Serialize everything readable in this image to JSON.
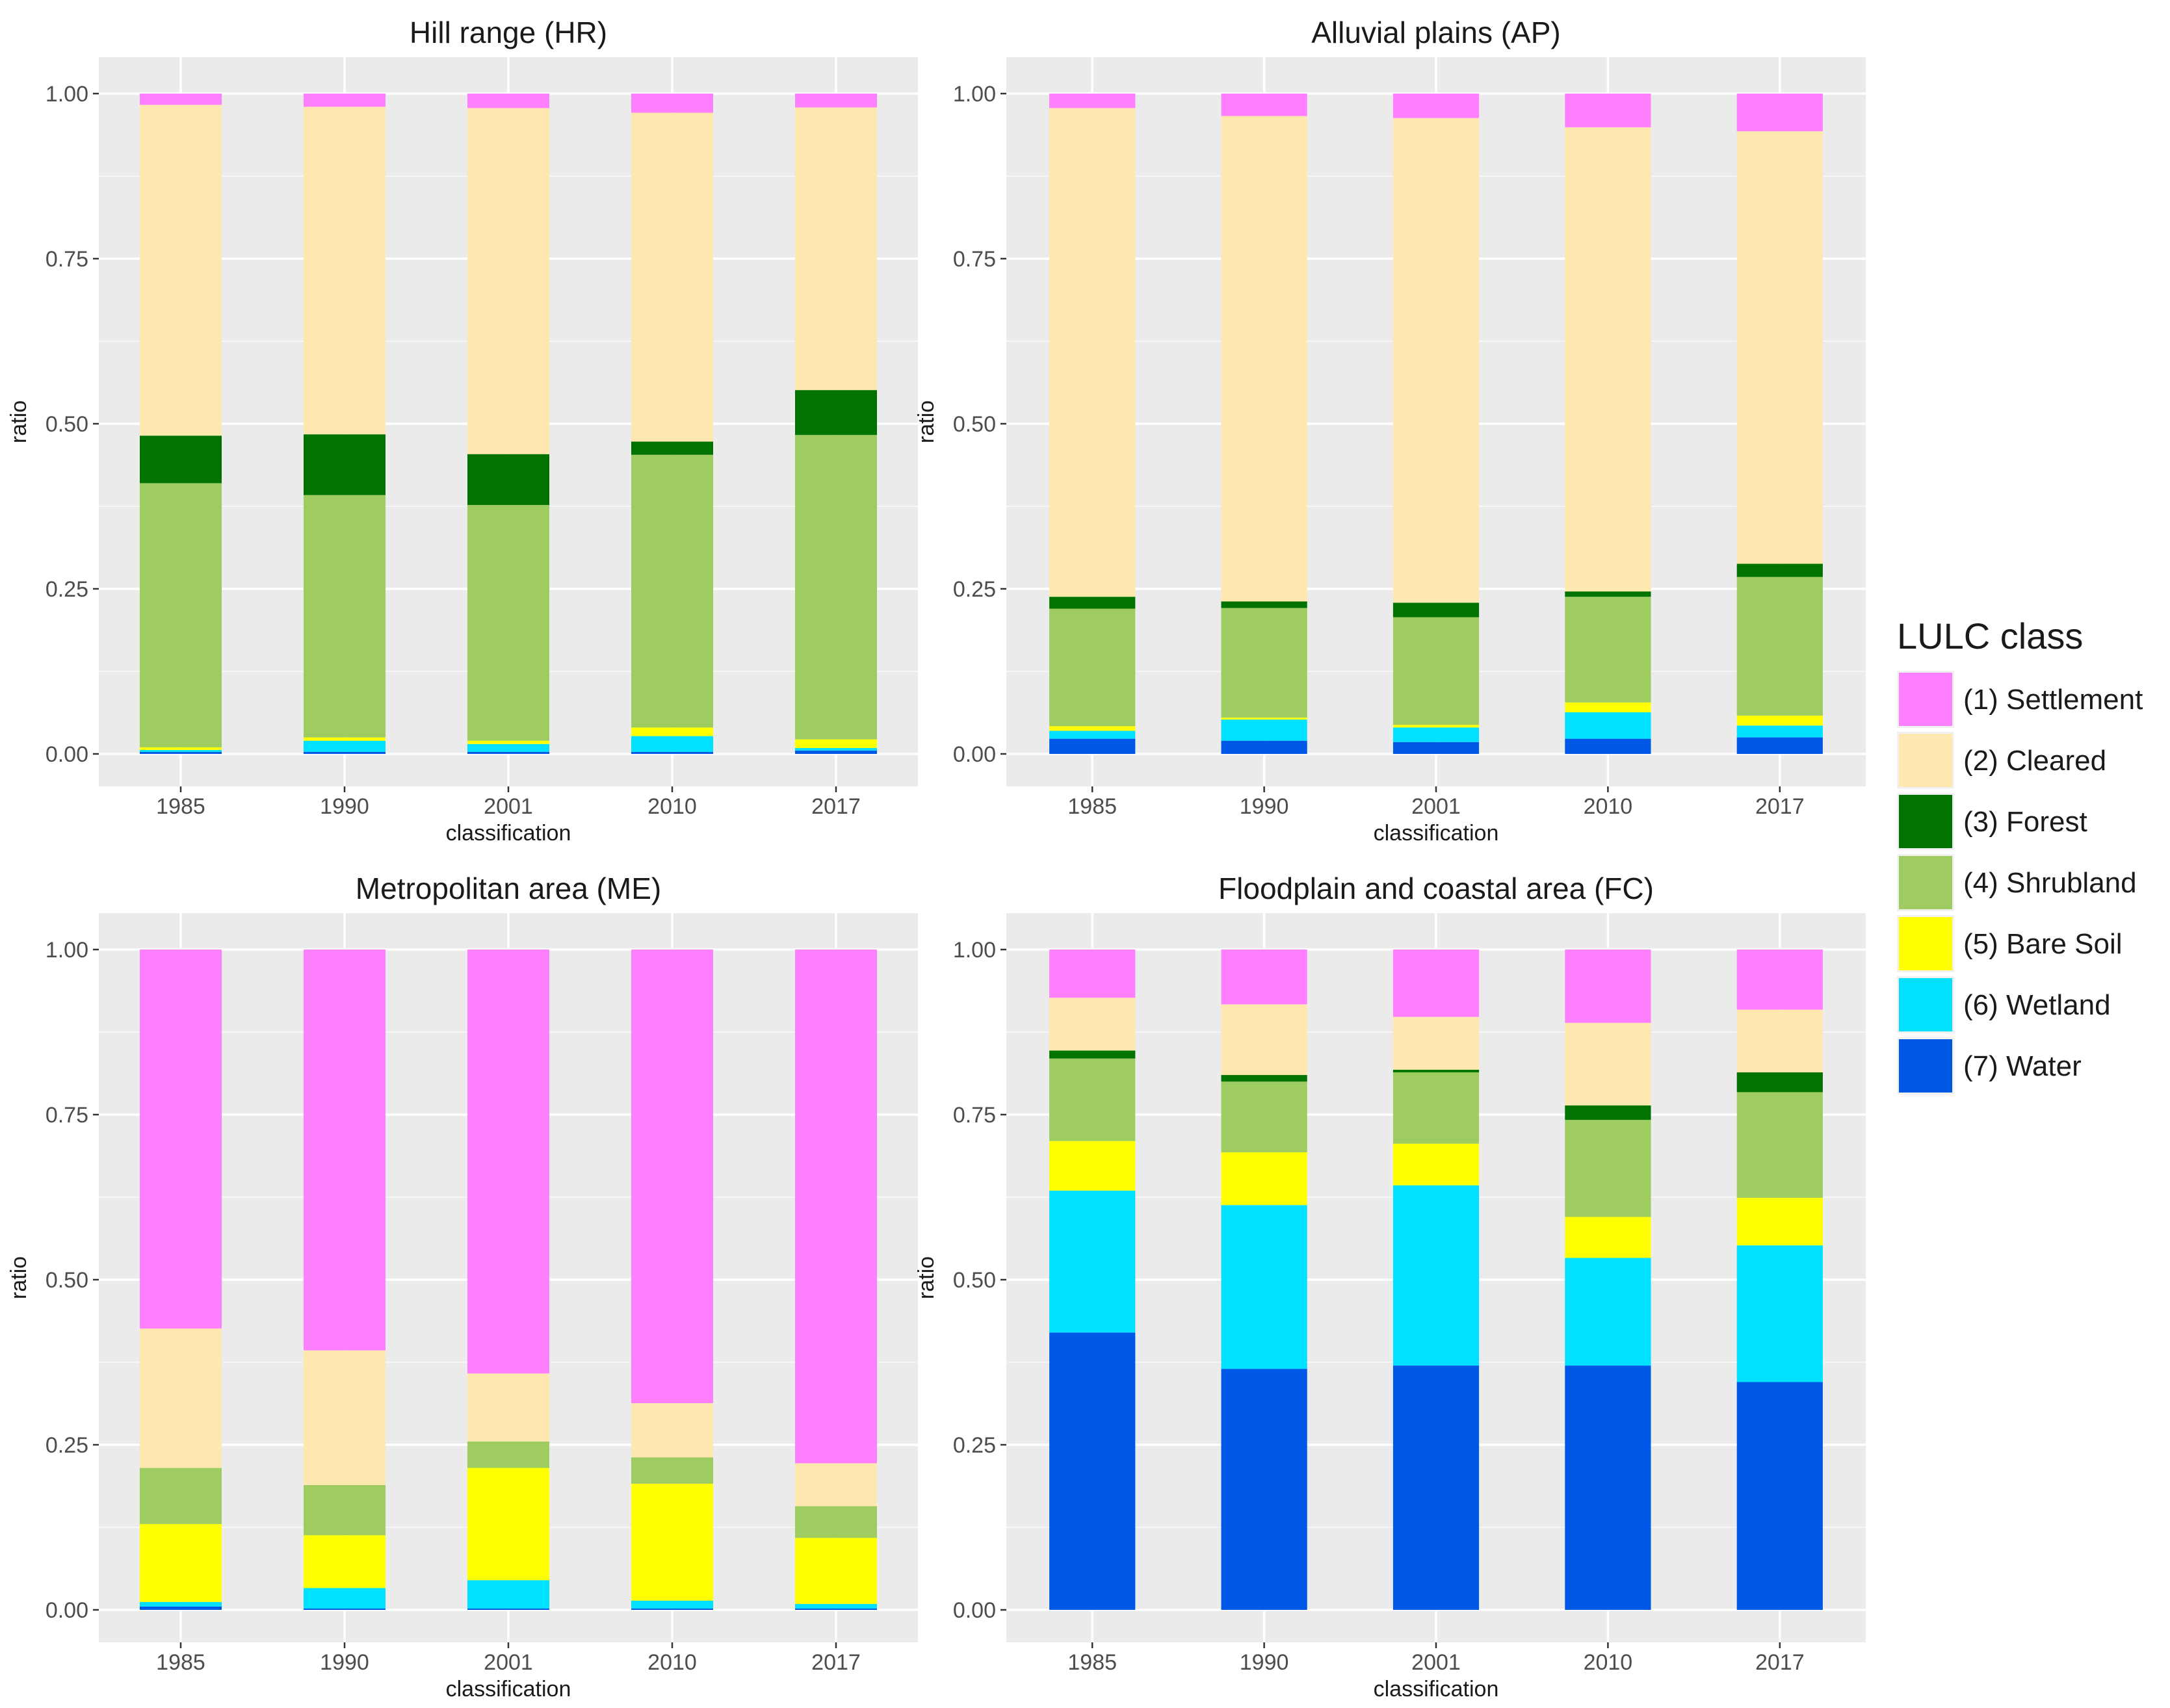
{
  "chart_data": [
    {
      "type": "bar",
      "stacked": true,
      "title": "Hill range (HR)",
      "xlabel": "classification",
      "ylabel": "ratio",
      "ylim": [
        0,
        1
      ],
      "categories": [
        "1985",
        "1990",
        "2001",
        "2010",
        "2017"
      ],
      "series": [
        {
          "name": "(7) Water",
          "values": [
            0.003,
            0.003,
            0.003,
            0.003,
            0.005
          ]
        },
        {
          "name": "(6) Wetland",
          "values": [
            0.003,
            0.017,
            0.012,
            0.024,
            0.004
          ]
        },
        {
          "name": "(5) Bare Soil",
          "values": [
            0.004,
            0.005,
            0.005,
            0.013,
            0.013
          ]
        },
        {
          "name": "(4) Shrubland",
          "values": [
            0.4,
            0.367,
            0.357,
            0.413,
            0.461
          ]
        },
        {
          "name": "(3) Forest",
          "values": [
            0.072,
            0.092,
            0.077,
            0.02,
            0.068
          ]
        },
        {
          "name": "(2) Cleared",
          "values": [
            0.501,
            0.496,
            0.524,
            0.498,
            0.428
          ]
        },
        {
          "name": "(1) Settlement",
          "values": [
            0.017,
            0.02,
            0.022,
            0.029,
            0.021
          ]
        }
      ]
    },
    {
      "type": "bar",
      "stacked": true,
      "title": "Alluvial plains (AP)",
      "xlabel": "classification",
      "ylabel": "ratio",
      "ylim": [
        0,
        1
      ],
      "categories": [
        "1985",
        "1990",
        "2001",
        "2010",
        "2017"
      ],
      "series": [
        {
          "name": "(7) Water",
          "values": [
            0.023,
            0.02,
            0.018,
            0.023,
            0.025
          ]
        },
        {
          "name": "(6) Wetland",
          "values": [
            0.012,
            0.032,
            0.022,
            0.04,
            0.018
          ]
        },
        {
          "name": "(5) Bare Soil",
          "values": [
            0.007,
            0.003,
            0.004,
            0.015,
            0.015
          ]
        },
        {
          "name": "(4) Shrubland",
          "values": [
            0.178,
            0.166,
            0.163,
            0.16,
            0.21
          ]
        },
        {
          "name": "(3) Forest",
          "values": [
            0.018,
            0.01,
            0.022,
            0.008,
            0.02
          ]
        },
        {
          "name": "(2) Cleared",
          "values": [
            0.74,
            0.735,
            0.734,
            0.703,
            0.655
          ]
        },
        {
          "name": "(1) Settlement",
          "values": [
            0.022,
            0.034,
            0.037,
            0.051,
            0.057
          ]
        }
      ]
    },
    {
      "type": "bar",
      "stacked": true,
      "title": "Metropolitan area (ME)",
      "xlabel": "classification",
      "ylabel": "ratio",
      "ylim": [
        0,
        1
      ],
      "categories": [
        "1985",
        "1990",
        "2001",
        "2010",
        "2017"
      ],
      "series": [
        {
          "name": "(7) Water",
          "values": [
            0.005,
            0.002,
            0.002,
            0.002,
            0.002
          ]
        },
        {
          "name": "(6) Wetland",
          "values": [
            0.007,
            0.031,
            0.043,
            0.012,
            0.007
          ]
        },
        {
          "name": "(5) Bare Soil",
          "values": [
            0.118,
            0.08,
            0.17,
            0.177,
            0.1
          ]
        },
        {
          "name": "(4) Shrubland",
          "values": [
            0.085,
            0.076,
            0.04,
            0.04,
            0.048
          ]
        },
        {
          "name": "(3) Forest",
          "values": [
            0.0,
            0.0,
            0.0,
            0.0,
            0.0
          ]
        },
        {
          "name": "(2) Cleared",
          "values": [
            0.211,
            0.204,
            0.103,
            0.082,
            0.065
          ]
        },
        {
          "name": "(1) Settlement",
          "values": [
            0.574,
            0.607,
            0.642,
            0.687,
            0.778
          ]
        }
      ]
    },
    {
      "type": "bar",
      "stacked": true,
      "title": "Floodplain and coastal area (FC)",
      "xlabel": "classification",
      "ylabel": "ratio",
      "ylim": [
        0,
        1
      ],
      "categories": [
        "1985",
        "1990",
        "2001",
        "2010",
        "2017"
      ],
      "series": [
        {
          "name": "(7) Water",
          "values": [
            0.42,
            0.365,
            0.37,
            0.37,
            0.345
          ]
        },
        {
          "name": "(6) Wetland",
          "values": [
            0.215,
            0.248,
            0.273,
            0.163,
            0.207
          ]
        },
        {
          "name": "(5) Bare Soil",
          "values": [
            0.075,
            0.08,
            0.063,
            0.062,
            0.072
          ]
        },
        {
          "name": "(4) Shrubland",
          "values": [
            0.125,
            0.107,
            0.108,
            0.147,
            0.16
          ]
        },
        {
          "name": "(3) Forest",
          "values": [
            0.012,
            0.01,
            0.004,
            0.022,
            0.03
          ]
        },
        {
          "name": "(2) Cleared",
          "values": [
            0.08,
            0.107,
            0.08,
            0.125,
            0.095
          ]
        },
        {
          "name": "(1) Settlement",
          "values": [
            0.073,
            0.083,
            0.102,
            0.111,
            0.091
          ]
        }
      ]
    }
  ],
  "legend": {
    "title": "LULC class",
    "items": [
      {
        "label": "(1) Settlement",
        "color": "#ff80ff"
      },
      {
        "label": "(2) Cleared",
        "color": "#ffe8b0"
      },
      {
        "label": "(3) Forest",
        "color": "#007300"
      },
      {
        "label": "(4) Shrubland",
        "color": "#9ecc60"
      },
      {
        "label": "(5) Bare Soil",
        "color": "#ffff00"
      },
      {
        "label": "(6) Wetland",
        "color": "#00e0ff"
      },
      {
        "label": "(7) Water",
        "color": "#0059e6"
      }
    ]
  },
  "y_tick_labels": [
    "0.00",
    "0.25",
    "0.50",
    "0.75",
    "1.00"
  ]
}
